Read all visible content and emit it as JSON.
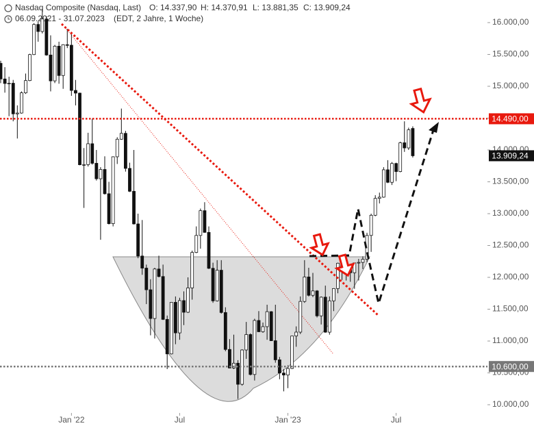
{
  "chart_data": {
    "type": "candlestick",
    "header": {
      "title": "Nasdaq Composite (Nasdaq, Last)",
      "ohlc": [
        "O: 14.337,90",
        "H: 14.370,91",
        "L: 13.881,35",
        "C: 13.909,24"
      ],
      "period": "06.09.2021 - 31.07.2023",
      "info": "(EDT, 2 Jahre, 1 Woche)"
    },
    "categories": [
      null,
      null,
      null,
      null,
      null,
      null,
      null,
      null,
      null,
      null,
      null,
      null,
      null,
      null,
      null,
      null,
      null,
      "Jan '22",
      null,
      null,
      null,
      null,
      null,
      null,
      null,
      null,
      null,
      null,
      null,
      null,
      null,
      null,
      null,
      null,
      null,
      null,
      null,
      null,
      null,
      null,
      null,
      null,
      null,
      "Jul",
      null,
      null,
      null,
      null,
      null,
      null,
      null,
      null,
      null,
      null,
      null,
      null,
      null,
      null,
      null,
      null,
      null,
      null,
      null,
      null,
      null,
      null,
      null,
      null,
      null,
      "Jan '23",
      null,
      null,
      null,
      null,
      null,
      null,
      null,
      null,
      null,
      null,
      null,
      null,
      null,
      null,
      null,
      null,
      null,
      null,
      null,
      null,
      null,
      null,
      null,
      null,
      null,
      "Jul",
      null,
      null,
      null,
      null
    ],
    "open": [
      15360,
      15115,
      15044,
      15048,
      14567,
      14580,
      14897,
      15090,
      15498,
      15971,
      15860,
      16057,
      15491,
      15085,
      15630,
      15169,
      15653,
      15645,
      14935,
      14893,
      13768,
      13770,
      14098,
      13791,
      13548,
      13694,
      13313,
      12843,
      13893,
      14169,
      14261,
      13711,
      13351,
      12839,
      12335,
      12145,
      11805,
      11354,
      12131,
      12013,
      11340,
      10798,
      11608,
      11128,
      11635,
      11452,
      11834,
      12391,
      12658,
      13047,
      12706,
      12142,
      11631,
      12112,
      11448,
      10868,
      10576,
      10652,
      10321,
      10860,
      11102,
      10475,
      11323,
      11146,
      11226,
      11461,
      11005,
      10705,
      10498,
      10466,
      10569,
      11079,
      11140,
      11622,
      12006,
      11718,
      11787,
      11395,
      11689,
      11139,
      11631,
      11824,
      12222,
      12088,
      12123,
      12072,
      12227,
      12235,
      12284,
      12658,
      12975,
      13240,
      13259,
      13689,
      13492,
      13788,
      13661,
      14113,
      14032,
      14337.9
    ],
    "high": [
      15400,
      15300,
      15150,
      15100,
      14700,
      14920,
      15200,
      15510,
      15990,
      16020,
      16210,
      16100,
      15800,
      15650,
      15700,
      15660,
      15900,
      15830,
      15100,
      14900,
      14030,
      14270,
      14490,
      14000,
      13730,
      13900,
      13500,
      13900,
      14200,
      14650,
      14300,
      13800,
      14000,
      13000,
      12900,
      12200,
      11970,
      12150,
      12340,
      12200,
      11400,
      11610,
      11700,
      11680,
      11780,
      12000,
      12420,
      12800,
      13080,
      13180,
      12800,
      12230,
      12270,
      12270,
      11530,
      11030,
      11100,
      10700,
      10870,
      11300,
      11120,
      11350,
      11470,
      11290,
      11570,
      11470,
      11570,
      10750,
      10560,
      10620,
      11080,
      11230,
      11700,
      12270,
      12150,
      12070,
      11800,
      11700,
      11870,
      11700,
      11830,
      12230,
      12230,
      12170,
      12180,
      12230,
      12290,
      12330,
      12700,
      13000,
      13290,
      13330,
      13730,
      13840,
      13810,
      13800,
      14130,
      14450,
      14350,
      14370.91
    ],
    "low": [
      15050,
      14900,
      14530,
      14450,
      14180,
      14570,
      14880,
      15080,
      15490,
      15700,
      15830,
      15480,
      14920,
      15050,
      15040,
      14960,
      15600,
      14850,
      14700,
      13760,
      13090,
      13740,
      13770,
      13520,
      12590,
      13300,
      12830,
      12800,
      13780,
      14160,
      13660,
      13340,
      12830,
      12300,
      12040,
      11580,
      11090,
      11040,
      12000,
      11330,
      10560,
      10790,
      10950,
      11020,
      11250,
      11440,
      11650,
      12380,
      12450,
      12700,
      12130,
      11600,
      11620,
      11430,
      10840,
      10570,
      10560,
      10090,
      10300,
      10720,
      10460,
      10380,
      11140,
      11130,
      11020,
      11000,
      10660,
      10400,
      10210,
      10260,
      10560,
      10910,
      11110,
      11600,
      11700,
      11690,
      11370,
      11260,
      11130,
      11100,
      11470,
      11750,
      11960,
      11950,
      11930,
      11820,
      11950,
      12130,
      12240,
      12400,
      12960,
      13160,
      13250,
      13480,
      13450,
      13510,
      13650,
      13970,
      14000,
      13881.35
    ],
    "close": [
      15115,
      15044,
      15048,
      14567,
      14580,
      14897,
      15090,
      15498,
      15971,
      15860,
      16057,
      15491,
      15085,
      15630,
      15169,
      15653,
      15645,
      14935,
      14893,
      13768,
      13770,
      14098,
      13791,
      13548,
      13694,
      13313,
      12843,
      13893,
      14169,
      14261,
      13711,
      13351,
      12839,
      12335,
      12145,
      11805,
      11354,
      12131,
      12013,
      11340,
      10798,
      11608,
      11128,
      11635,
      11452,
      11834,
      12391,
      12658,
      13047,
      12706,
      12142,
      11631,
      12112,
      11448,
      10868,
      10576,
      10652,
      10321,
      10860,
      11102,
      10475,
      11323,
      11146,
      11226,
      11461,
      11005,
      10705,
      10498,
      10466,
      10569,
      11079,
      11140,
      11622,
      12006,
      11718,
      11787,
      11395,
      11689,
      11139,
      11631,
      11824,
      12222,
      12088,
      12123,
      12072,
      12227,
      12235,
      12284,
      12658,
      12975,
      13240,
      13259,
      13689,
      13492,
      13788,
      13661,
      14113,
      14032,
      14316,
      13909.24
    ],
    "ylim": [
      10000,
      16000
    ],
    "yticks": [
      {
        "value": 10000,
        "label": "10.000,00"
      },
      {
        "value": 10500,
        "label": "10.500,00"
      },
      {
        "value": 11000,
        "label": "11.000,00"
      },
      {
        "value": 11500,
        "label": "11.500,00"
      },
      {
        "value": 12000,
        "label": "12.000,00"
      },
      {
        "value": 12500,
        "label": "12.500,00"
      },
      {
        "value": 13000,
        "label": "13.000,00"
      },
      {
        "value": 13500,
        "label": "13.500,00"
      },
      {
        "value": 14000,
        "label": "14.000,00"
      },
      {
        "value": 14500,
        "label": "14.500,00"
      },
      {
        "value": 15000,
        "label": "15.000,00"
      },
      {
        "value": 15500,
        "label": "15.500,00"
      },
      {
        "value": 16000,
        "label": "16.000,00"
      }
    ],
    "levels": [
      {
        "value": 14490,
        "label": "14.490,00",
        "color": "#e8190e"
      },
      {
        "value": 10600,
        "label": "10.600,00",
        "color": "#777777"
      }
    ],
    "last": {
      "value": 13909.24,
      "label": "13.909,24",
      "color": "#111111"
    },
    "up_color": "#ffffff",
    "down_color": "#111111"
  }
}
